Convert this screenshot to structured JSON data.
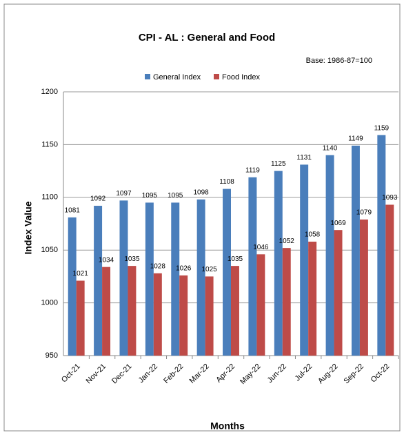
{
  "chart_data": {
    "type": "bar",
    "title": "CPI - AL : General and Food",
    "annotation": "Base: 1986-87=100",
    "x_label": "Months",
    "y_label": "Index Value",
    "categories": [
      "Oct-21",
      "Nov-21",
      "Dec-21",
      "Jan-22",
      "Feb-22",
      "Mar-22",
      "Apr-22",
      "May-22",
      "Jun-22",
      "Jul-22",
      "Aug-22",
      "Sep-22",
      "Oct-22"
    ],
    "series": [
      {
        "name": "General Index",
        "color": "#4a7ebb",
        "values": [
          1081,
          1092,
          1097,
          1095,
          1095,
          1098,
          1108,
          1119,
          1125,
          1131,
          1140,
          1149,
          1159
        ]
      },
      {
        "name": "Food Index",
        "color": "#be4b48",
        "values": [
          1021,
          1034,
          1035,
          1028,
          1026,
          1025,
          1035,
          1046,
          1052,
          1058,
          1069,
          1079,
          1093
        ]
      }
    ],
    "ylim": [
      950,
      1200
    ],
    "yticks": [
      950,
      1000,
      1050,
      1100,
      1150,
      1200
    ],
    "grid": true,
    "legend": "top"
  }
}
